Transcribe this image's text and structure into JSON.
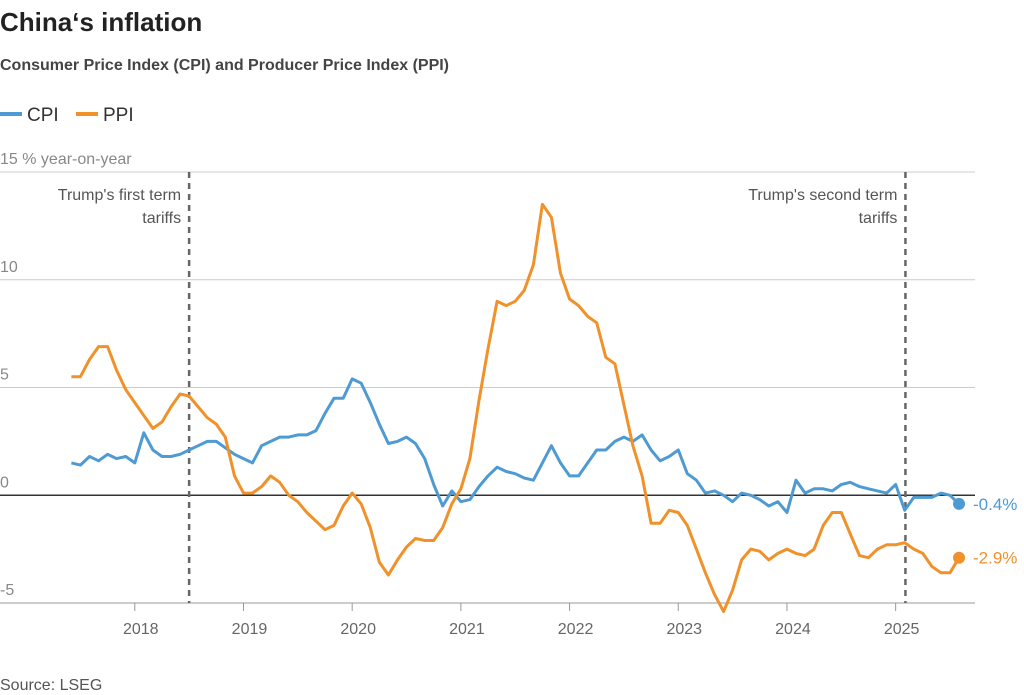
{
  "chart_data": {
    "type": "line",
    "title": "China‘s inflation",
    "subtitle": "Consumer Price Index (CPI) and Producer Price Index (PPI)",
    "source": "Source: LSEG",
    "x": [
      2017.417,
      2017.5,
      2017.583,
      2017.667,
      2017.75,
      2017.833,
      2017.917,
      2018,
      2018.083,
      2018.167,
      2018.25,
      2018.333,
      2018.417,
      2018.5,
      2018.583,
      2018.667,
      2018.75,
      2018.833,
      2018.917,
      2019,
      2019.083,
      2019.167,
      2019.25,
      2019.333,
      2019.417,
      2019.5,
      2019.583,
      2019.667,
      2019.75,
      2019.833,
      2019.917,
      2020,
      2020.083,
      2020.167,
      2020.25,
      2020.333,
      2020.417,
      2020.5,
      2020.583,
      2020.667,
      2020.75,
      2020.833,
      2020.917,
      2021,
      2021.083,
      2021.167,
      2021.25,
      2021.333,
      2021.417,
      2021.5,
      2021.583,
      2021.667,
      2021.75,
      2021.833,
      2021.917,
      2022,
      2022.083,
      2022.167,
      2022.25,
      2022.333,
      2022.417,
      2022.5,
      2022.583,
      2022.667,
      2022.75,
      2022.833,
      2022.917,
      2023,
      2023.083,
      2023.167,
      2023.25,
      2023.333,
      2023.417,
      2023.5,
      2023.583,
      2023.667,
      2023.75,
      2023.833,
      2023.917,
      2024,
      2024.083,
      2024.167,
      2024.25,
      2024.333,
      2024.417,
      2024.5,
      2024.583,
      2024.667,
      2024.75,
      2024.833,
      2024.917,
      2025,
      2025.083,
      2025.167,
      2025.25,
      2025.333,
      2025.417,
      2025.5,
      2025.583
    ],
    "series": [
      {
        "name": "CPI",
        "color": "#4e9ad3",
        "last_label": "-0.4%",
        "values": [
          1.5,
          1.4,
          1.8,
          1.6,
          1.9,
          1.7,
          1.8,
          1.5,
          2.9,
          2.1,
          1.8,
          1.8,
          1.9,
          2.1,
          2.3,
          2.5,
          2.5,
          2.2,
          1.9,
          1.7,
          1.5,
          2.3,
          2.5,
          2.7,
          2.7,
          2.8,
          2.8,
          3.0,
          3.8,
          4.5,
          4.5,
          5.4,
          5.2,
          4.3,
          3.3,
          2.4,
          2.5,
          2.7,
          2.4,
          1.7,
          0.5,
          -0.5,
          0.2,
          -0.3,
          -0.2,
          0.4,
          0.9,
          1.3,
          1.1,
          1.0,
          0.8,
          0.7,
          1.5,
          2.3,
          1.5,
          0.9,
          0.9,
          1.5,
          2.1,
          2.1,
          2.5,
          2.7,
          2.5,
          2.8,
          2.1,
          1.6,
          1.8,
          2.1,
          1.0,
          0.7,
          0.1,
          0.2,
          0.0,
          -0.3,
          0.1,
          0.0,
          -0.2,
          -0.5,
          -0.3,
          -0.8,
          0.7,
          0.1,
          0.3,
          0.3,
          0.2,
          0.5,
          0.6,
          0.4,
          0.3,
          0.2,
          0.1,
          0.5,
          -0.7,
          -0.1,
          -0.1,
          -0.1,
          0.1,
          0.0,
          -0.4
        ]
      },
      {
        "name": "PPI",
        "color": "#f0912a",
        "last_label": "-2.9%",
        "values": [
          5.5,
          5.5,
          6.3,
          6.9,
          6.9,
          5.8,
          4.9,
          4.3,
          3.7,
          3.1,
          3.4,
          4.1,
          4.7,
          4.6,
          4.1,
          3.6,
          3.3,
          2.7,
          0.9,
          0.1,
          0.1,
          0.4,
          0.9,
          0.6,
          0.0,
          -0.3,
          -0.8,
          -1.2,
          -1.6,
          -1.4,
          -0.5,
          0.1,
          -0.4,
          -1.5,
          -3.1,
          -3.7,
          -3.0,
          -2.4,
          -2.0,
          -2.1,
          -2.1,
          -1.5,
          -0.4,
          0.3,
          1.7,
          4.4,
          6.8,
          9.0,
          8.8,
          9.0,
          9.5,
          10.7,
          13.5,
          12.9,
          10.3,
          9.1,
          8.8,
          8.3,
          8.0,
          6.4,
          6.1,
          4.2,
          2.3,
          0.9,
          -1.3,
          -1.3,
          -0.7,
          -0.8,
          -1.4,
          -2.5,
          -3.6,
          -4.6,
          -5.4,
          -4.4,
          -3.0,
          -2.5,
          -2.6,
          -3.0,
          -2.7,
          -2.5,
          -2.7,
          -2.8,
          -2.5,
          -1.4,
          -0.8,
          -0.8,
          -1.8,
          -2.8,
          -2.9,
          -2.5,
          -2.3,
          -2.3,
          -2.2,
          -2.5,
          -2.7,
          -3.3,
          -3.6,
          -3.6,
          -2.9
        ]
      }
    ],
    "annotations": [
      {
        "x": 2018.5,
        "text": [
          "Trump's first term",
          "tariffs"
        ]
      },
      {
        "x": 2025.09,
        "text": [
          "Trump's second term",
          "tariffs"
        ]
      }
    ],
    "xlim": [
      2016.76,
      2025.73
    ],
    "xticks": [
      2018,
      2019,
      2020,
      2021,
      2022,
      2023,
      2024,
      2025
    ],
    "ylim": [
      -5,
      15
    ],
    "yticks": [
      -5,
      0,
      5,
      10,
      {
        "value": 15,
        "label": "15 % year-on-year"
      }
    ],
    "grid": true
  }
}
